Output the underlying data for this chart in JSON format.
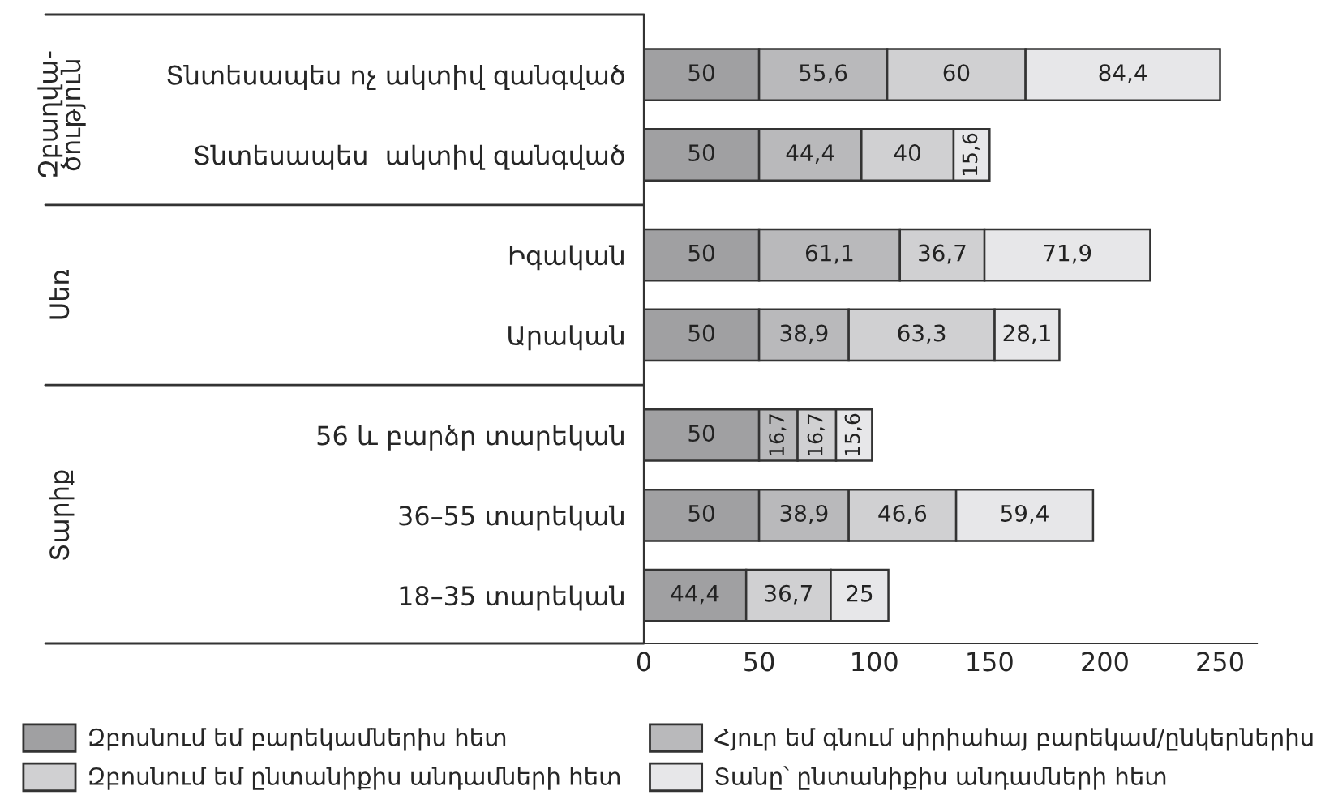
{
  "chart_data": {
    "type": "bar",
    "orientation": "horizontal",
    "stacked": true,
    "categories": [
      "Տնտեսապես ոչ ակտիվ զանգված",
      "Տնտեսապես  ակտիվ զանգված",
      "Իգական",
      "Արական",
      "56 և բարձր տարեկան",
      "36–55 տարեկան",
      "18–35 տարեկան"
    ],
    "series": [
      {
        "name": "Զբոսնում եմ բարեկամներիս հետ",
        "color": "#a0a0a2",
        "values": [
          50,
          50,
          50,
          50,
          50,
          50,
          44.4
        ],
        "value_labels": [
          "50",
          "50",
          "50",
          "50",
          "50",
          "50",
          "44,4"
        ]
      },
      {
        "name": "Հյուր եմ գնում սիրիահայ բարեկամ/ընկերներիս",
        "color": "#b9b9bb",
        "values": [
          55.6,
          44.4,
          61.1,
          38.9,
          16.7,
          38.9,
          null
        ],
        "value_labels": [
          "55,6",
          "44,4",
          "61,1",
          "38,9",
          "16,7",
          "38,9",
          null
        ]
      },
      {
        "name": "Զբոսնում եմ ընտանիքիս անդամների հետ",
        "color": "#d0d0d2",
        "values": [
          60,
          40,
          36.7,
          63.3,
          16.7,
          46.6,
          36.7
        ],
        "value_labels": [
          "60",
          "40",
          "36,7",
          "63,3",
          "16,7",
          "46,6",
          "36,7"
        ]
      },
      {
        "name": "Տանը՝ ընտանիքիս անդամների հետ",
        "color": "#e7e7e9",
        "values": [
          84.4,
          15.6,
          71.9,
          28.1,
          15.6,
          59.4,
          25
        ],
        "value_labels": [
          "84,4",
          "15,6",
          "71,9",
          "28,1",
          "15,6",
          "59,4",
          "25"
        ]
      }
    ],
    "xlim": [
      0,
      266
    ],
    "xticks": [
      0,
      50,
      100,
      150,
      200,
      250
    ],
    "grid": false,
    "legend": "bottom",
    "annotations": [
      "Զբաղվա-\nծություն",
      "Սեռ",
      "Տարիք"
    ]
  }
}
